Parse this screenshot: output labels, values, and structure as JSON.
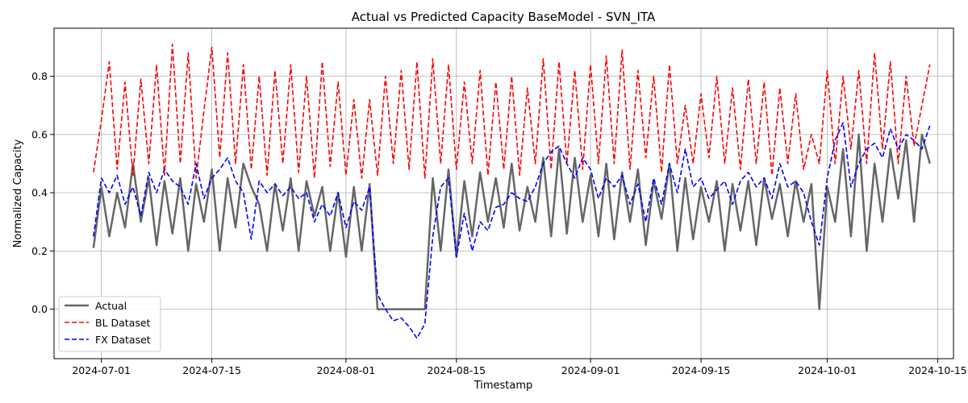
{
  "chart_data": {
    "type": "line",
    "title": "Actual vs Predicted Capacity BaseModel - SVN_ITA",
    "xlabel": "Timestamp",
    "ylabel": "Normalized Capacity",
    "x_range": [
      "2024-06-25",
      "2024-10-17"
    ],
    "ylim": [
      -0.17,
      0.965
    ],
    "x_ticks": [
      "2024-07-01",
      "2024-07-15",
      "2024-08-01",
      "2024-08-15",
      "2024-09-01",
      "2024-09-15",
      "2024-10-01",
      "2024-10-15"
    ],
    "y_ticks": [
      0.0,
      0.2,
      0.4,
      0.6,
      0.8
    ],
    "y_tick_labels": [
      "0.0",
      "0.2",
      "0.4",
      "0.6",
      "0.8"
    ],
    "grid": true,
    "legend_position": "lower-left",
    "series": [
      {
        "name": "Actual",
        "color": "#666666",
        "style": "solid",
        "x": [
          "2024-06-30",
          "2024-07-01",
          "2024-07-02",
          "2024-07-03",
          "2024-07-04",
          "2024-07-05",
          "2024-07-06",
          "2024-07-07",
          "2024-07-08",
          "2024-07-09",
          "2024-07-10",
          "2024-07-11",
          "2024-07-12",
          "2024-07-13",
          "2024-07-14",
          "2024-07-15",
          "2024-07-16",
          "2024-07-17",
          "2024-07-18",
          "2024-07-19",
          "2024-07-20",
          "2024-07-21",
          "2024-07-22",
          "2024-07-23",
          "2024-07-24",
          "2024-07-25",
          "2024-07-26",
          "2024-07-27",
          "2024-07-28",
          "2024-07-29",
          "2024-07-30",
          "2024-07-31",
          "2024-08-01",
          "2024-08-02",
          "2024-08-03",
          "2024-08-04",
          "2024-08-05",
          "2024-08-06",
          "2024-08-07",
          "2024-08-08",
          "2024-08-09",
          "2024-08-10",
          "2024-08-11",
          "2024-08-12",
          "2024-08-13",
          "2024-08-14",
          "2024-08-15",
          "2024-08-16",
          "2024-08-17",
          "2024-08-18",
          "2024-08-19",
          "2024-08-20",
          "2024-08-21",
          "2024-08-22",
          "2024-08-23",
          "2024-08-24",
          "2024-08-25",
          "2024-08-26",
          "2024-08-27",
          "2024-08-28",
          "2024-08-29",
          "2024-08-30",
          "2024-08-31",
          "2024-09-01",
          "2024-09-02",
          "2024-09-03",
          "2024-09-04",
          "2024-09-05",
          "2024-09-06",
          "2024-09-07",
          "2024-09-08",
          "2024-09-09",
          "2024-09-10",
          "2024-09-11",
          "2024-09-12",
          "2024-09-13",
          "2024-09-14",
          "2024-09-15",
          "2024-09-16",
          "2024-09-17",
          "2024-09-18",
          "2024-09-19",
          "2024-09-20",
          "2024-09-21",
          "2024-09-22",
          "2024-09-23",
          "2024-09-24",
          "2024-09-25",
          "2024-09-26",
          "2024-09-27",
          "2024-09-28",
          "2024-09-29",
          "2024-09-30",
          "2024-10-01",
          "2024-10-02",
          "2024-10-03",
          "2024-10-04",
          "2024-10-05",
          "2024-10-06",
          "2024-10-07",
          "2024-10-08",
          "2024-10-09",
          "2024-10-10",
          "2024-10-11",
          "2024-10-12",
          "2024-10-13",
          "2024-10-14"
        ],
        "values": [
          0.21,
          0.42,
          0.25,
          0.4,
          0.28,
          0.5,
          0.3,
          0.45,
          0.22,
          0.44,
          0.26,
          0.45,
          0.2,
          0.43,
          0.3,
          0.48,
          0.2,
          0.45,
          0.28,
          0.5,
          0.42,
          0.36,
          0.2,
          0.43,
          0.27,
          0.45,
          0.2,
          0.44,
          0.32,
          0.42,
          0.2,
          0.4,
          0.18,
          0.42,
          0.2,
          0.43,
          0.0,
          0.0,
          0.0,
          0.0,
          0.0,
          0.0,
          0.0,
          0.45,
          0.2,
          0.48,
          0.18,
          0.44,
          0.25,
          0.47,
          0.3,
          0.45,
          0.28,
          0.5,
          0.27,
          0.42,
          0.3,
          0.52,
          0.25,
          0.55,
          0.26,
          0.52,
          0.3,
          0.46,
          0.25,
          0.5,
          0.24,
          0.47,
          0.3,
          0.48,
          0.22,
          0.44,
          0.31,
          0.5,
          0.2,
          0.45,
          0.24,
          0.42,
          0.3,
          0.44,
          0.2,
          0.43,
          0.27,
          0.44,
          0.22,
          0.45,
          0.31,
          0.43,
          0.25,
          0.44,
          0.3,
          0.43,
          0.0,
          0.42,
          0.3,
          0.55,
          0.25,
          0.6,
          0.2,
          0.5,
          0.3,
          0.55,
          0.38,
          0.58,
          0.3,
          0.6,
          0.5
        ]
      },
      {
        "name": "BL Dataset",
        "color": "#ff0000",
        "style": "dashed",
        "x": [
          "2024-06-30",
          "2024-07-01",
          "2024-07-02",
          "2024-07-03",
          "2024-07-04",
          "2024-07-05",
          "2024-07-06",
          "2024-07-07",
          "2024-07-08",
          "2024-07-09",
          "2024-07-10",
          "2024-07-11",
          "2024-07-12",
          "2024-07-13",
          "2024-07-14",
          "2024-07-15",
          "2024-07-16",
          "2024-07-17",
          "2024-07-18",
          "2024-07-19",
          "2024-07-20",
          "2024-07-21",
          "2024-07-22",
          "2024-07-23",
          "2024-07-24",
          "2024-07-25",
          "2024-07-26",
          "2024-07-27",
          "2024-07-28",
          "2024-07-29",
          "2024-07-30",
          "2024-07-31",
          "2024-08-01",
          "2024-08-02",
          "2024-08-03",
          "2024-08-04",
          "2024-08-05",
          "2024-08-06",
          "2024-08-07",
          "2024-08-08",
          "2024-08-09",
          "2024-08-10",
          "2024-08-11",
          "2024-08-12",
          "2024-08-13",
          "2024-08-14",
          "2024-08-15",
          "2024-08-16",
          "2024-08-17",
          "2024-08-18",
          "2024-08-19",
          "2024-08-20",
          "2024-08-21",
          "2024-08-22",
          "2024-08-23",
          "2024-08-24",
          "2024-08-25",
          "2024-08-26",
          "2024-08-27",
          "2024-08-28",
          "2024-08-29",
          "2024-08-30",
          "2024-08-31",
          "2024-09-01",
          "2024-09-02",
          "2024-09-03",
          "2024-09-04",
          "2024-09-05",
          "2024-09-06",
          "2024-09-07",
          "2024-09-08",
          "2024-09-09",
          "2024-09-10",
          "2024-09-11",
          "2024-09-12",
          "2024-09-13",
          "2024-09-14",
          "2024-09-15",
          "2024-09-16",
          "2024-09-17",
          "2024-09-18",
          "2024-09-19",
          "2024-09-20",
          "2024-09-21",
          "2024-09-22",
          "2024-09-23",
          "2024-09-24",
          "2024-09-25",
          "2024-09-26",
          "2024-09-27",
          "2024-09-28",
          "2024-09-29",
          "2024-09-30",
          "2024-10-01",
          "2024-10-02",
          "2024-10-03",
          "2024-10-04",
          "2024-10-05",
          "2024-10-06",
          "2024-10-07",
          "2024-10-08",
          "2024-10-09",
          "2024-10-10",
          "2024-10-11",
          "2024-10-12",
          "2024-10-13",
          "2024-10-14"
        ],
        "values": [
          0.47,
          0.65,
          0.85,
          0.48,
          0.78,
          0.46,
          0.79,
          0.5,
          0.84,
          0.46,
          0.91,
          0.5,
          0.88,
          0.45,
          0.68,
          0.9,
          0.52,
          0.88,
          0.5,
          0.84,
          0.48,
          0.8,
          0.46,
          0.82,
          0.5,
          0.84,
          0.47,
          0.8,
          0.45,
          0.85,
          0.49,
          0.78,
          0.46,
          0.72,
          0.45,
          0.72,
          0.46,
          0.8,
          0.5,
          0.82,
          0.48,
          0.85,
          0.45,
          0.86,
          0.5,
          0.84,
          0.48,
          0.78,
          0.5,
          0.82,
          0.46,
          0.78,
          0.48,
          0.8,
          0.46,
          0.76,
          0.5,
          0.86,
          0.48,
          0.85,
          0.5,
          0.82,
          0.48,
          0.84,
          0.5,
          0.87,
          0.5,
          0.89,
          0.48,
          0.82,
          0.52,
          0.8,
          0.47,
          0.84,
          0.5,
          0.7,
          0.5,
          0.74,
          0.52,
          0.8,
          0.5,
          0.76,
          0.48,
          0.79,
          0.5,
          0.78,
          0.46,
          0.76,
          0.5,
          0.74,
          0.48,
          0.6,
          0.5,
          0.82,
          0.5,
          0.8,
          0.55,
          0.82,
          0.5,
          0.88,
          0.55,
          0.85,
          0.5,
          0.8,
          0.56,
          0.7,
          0.84
        ]
      },
      {
        "name": "FX Dataset",
        "color": "#0000ff",
        "style": "dashed",
        "x": [
          "2024-06-30",
          "2024-07-01",
          "2024-07-02",
          "2024-07-03",
          "2024-07-04",
          "2024-07-05",
          "2024-07-06",
          "2024-07-07",
          "2024-07-08",
          "2024-07-09",
          "2024-07-10",
          "2024-07-11",
          "2024-07-12",
          "2024-07-13",
          "2024-07-14",
          "2024-07-15",
          "2024-07-16",
          "2024-07-17",
          "2024-07-18",
          "2024-07-19",
          "2024-07-20",
          "2024-07-21",
          "2024-07-22",
          "2024-07-23",
          "2024-07-24",
          "2024-07-25",
          "2024-07-26",
          "2024-07-27",
          "2024-07-28",
          "2024-07-29",
          "2024-07-30",
          "2024-07-31",
          "2024-08-01",
          "2024-08-02",
          "2024-08-03",
          "2024-08-04",
          "2024-08-05",
          "2024-08-06",
          "2024-08-07",
          "2024-08-08",
          "2024-08-09",
          "2024-08-10",
          "2024-08-11",
          "2024-08-12",
          "2024-08-13",
          "2024-08-14",
          "2024-08-15",
          "2024-08-16",
          "2024-08-17",
          "2024-08-18",
          "2024-08-19",
          "2024-08-20",
          "2024-08-21",
          "2024-08-22",
          "2024-08-23",
          "2024-08-24",
          "2024-08-25",
          "2024-08-26",
          "2024-08-27",
          "2024-08-28",
          "2024-08-29",
          "2024-08-30",
          "2024-08-31",
          "2024-09-01",
          "2024-09-02",
          "2024-09-03",
          "2024-09-04",
          "2024-09-05",
          "2024-09-06",
          "2024-09-07",
          "2024-09-08",
          "2024-09-09",
          "2024-09-10",
          "2024-09-11",
          "2024-09-12",
          "2024-09-13",
          "2024-09-14",
          "2024-09-15",
          "2024-09-16",
          "2024-09-17",
          "2024-09-18",
          "2024-09-19",
          "2024-09-20",
          "2024-09-21",
          "2024-09-22",
          "2024-09-23",
          "2024-09-24",
          "2024-09-25",
          "2024-09-26",
          "2024-09-27",
          "2024-09-28",
          "2024-09-29",
          "2024-09-30",
          "2024-10-01",
          "2024-10-02",
          "2024-10-03",
          "2024-10-04",
          "2024-10-05",
          "2024-10-06",
          "2024-10-07",
          "2024-10-08",
          "2024-10-09",
          "2024-10-10",
          "2024-10-11",
          "2024-10-12",
          "2024-10-13",
          "2024-10-14"
        ],
        "values": [
          0.25,
          0.45,
          0.4,
          0.46,
          0.36,
          0.42,
          0.32,
          0.47,
          0.4,
          0.48,
          0.44,
          0.42,
          0.36,
          0.5,
          0.38,
          0.45,
          0.48,
          0.52,
          0.44,
          0.4,
          0.24,
          0.44,
          0.4,
          0.43,
          0.39,
          0.42,
          0.38,
          0.4,
          0.3,
          0.36,
          0.32,
          0.4,
          0.28,
          0.37,
          0.34,
          0.42,
          0.05,
          0.0,
          -0.04,
          -0.03,
          -0.06,
          -0.1,
          -0.05,
          0.25,
          0.42,
          0.45,
          0.18,
          0.33,
          0.2,
          0.3,
          0.27,
          0.35,
          0.36,
          0.4,
          0.38,
          0.37,
          0.42,
          0.5,
          0.54,
          0.56,
          0.5,
          0.45,
          0.52,
          0.48,
          0.38,
          0.45,
          0.42,
          0.46,
          0.36,
          0.43,
          0.3,
          0.45,
          0.36,
          0.5,
          0.4,
          0.55,
          0.42,
          0.45,
          0.38,
          0.41,
          0.44,
          0.36,
          0.44,
          0.47,
          0.42,
          0.45,
          0.38,
          0.5,
          0.42,
          0.44,
          0.4,
          0.3,
          0.22,
          0.45,
          0.58,
          0.64,
          0.42,
          0.5,
          0.55,
          0.57,
          0.52,
          0.62,
          0.55,
          0.6,
          0.58,
          0.55,
          0.63
        ]
      }
    ]
  }
}
